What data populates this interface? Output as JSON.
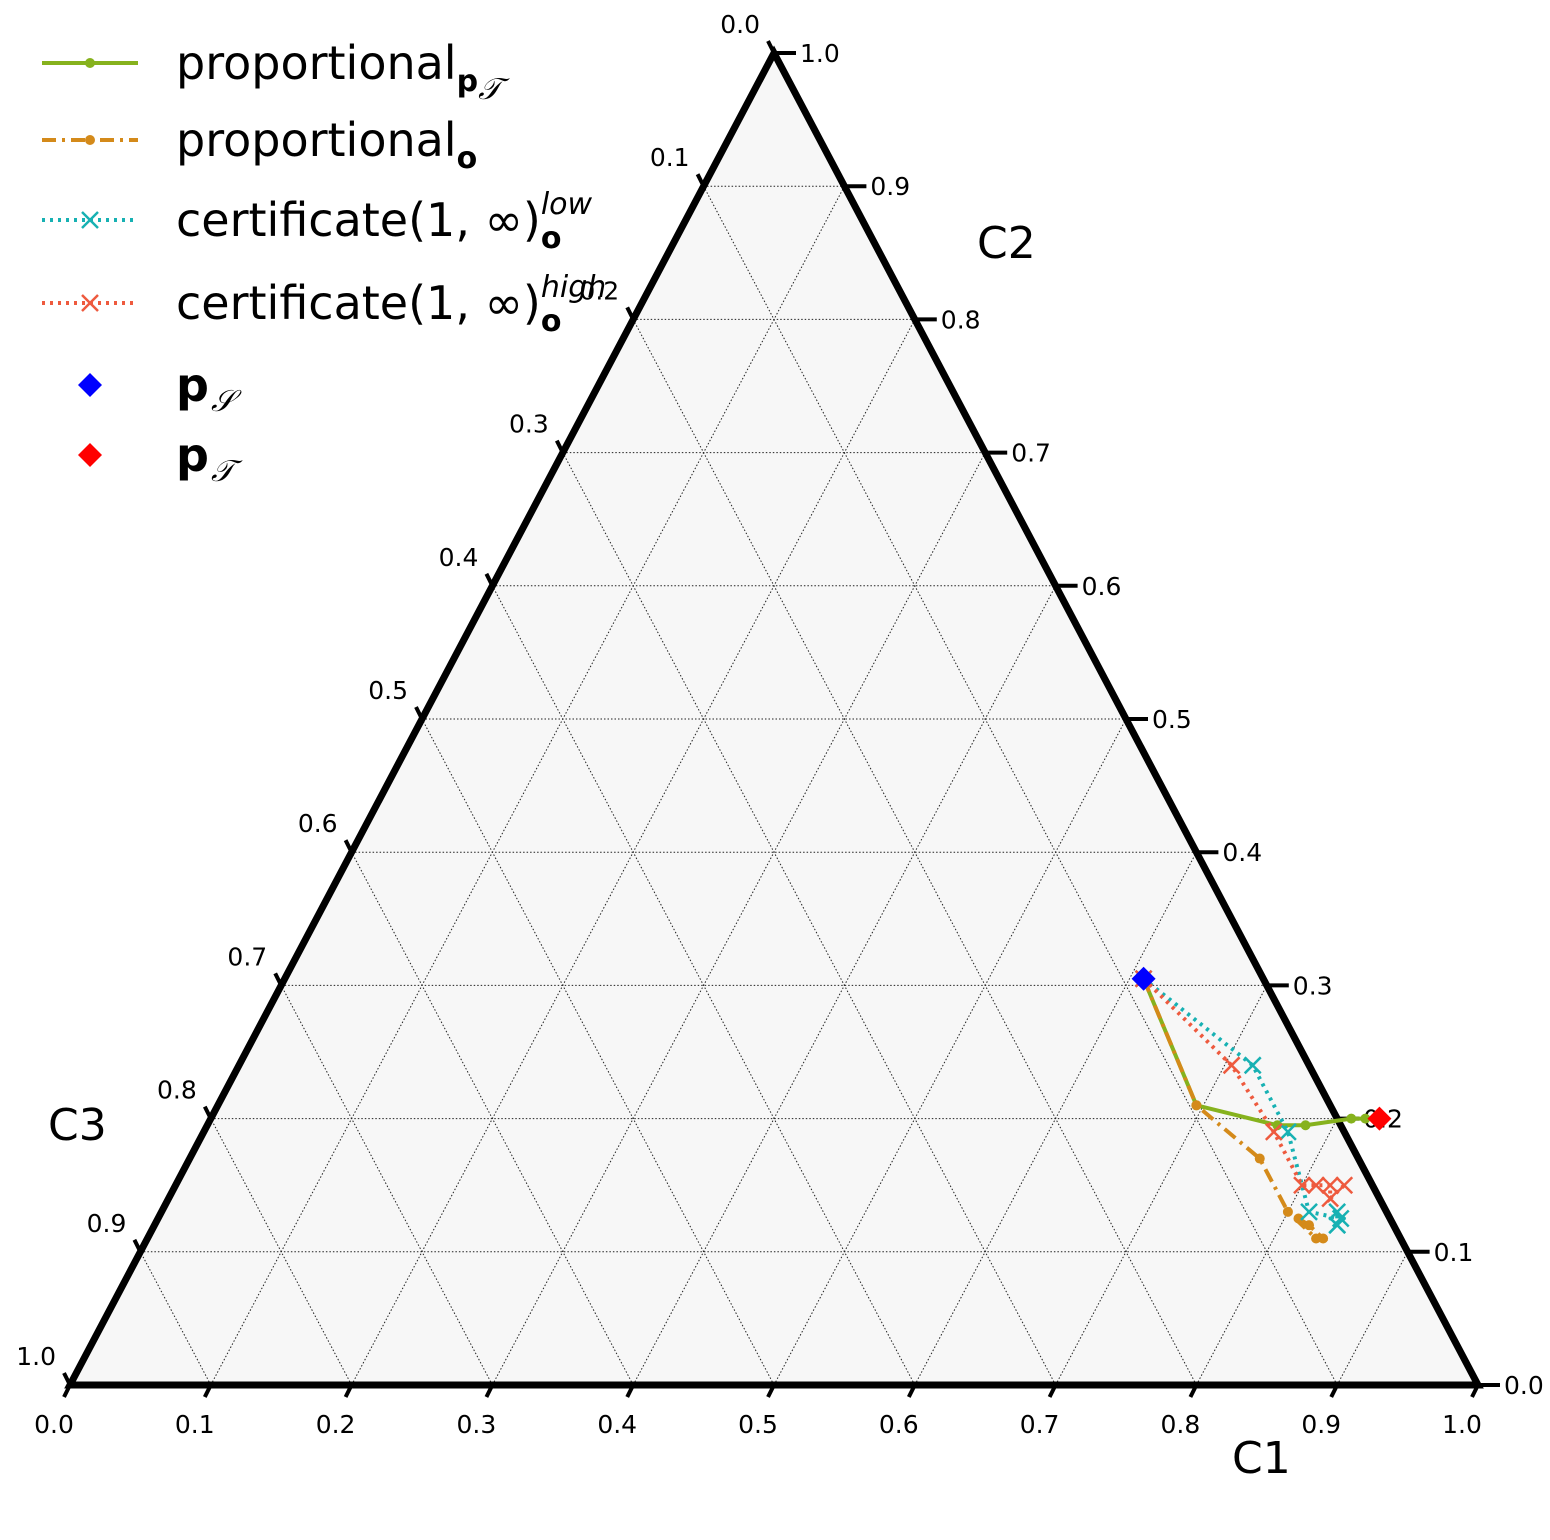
{
  "chart_data": {
    "type": "ternary",
    "axes": {
      "bottom": {
        "label": "C1",
        "ticks": [
          "0.0",
          "0.1",
          "0.2",
          "0.3",
          "0.4",
          "0.5",
          "0.6",
          "0.7",
          "0.8",
          "0.9",
          "1.0"
        ]
      },
      "right": {
        "label": "C2",
        "ticks": [
          "0.0",
          "0.1",
          "0.2",
          "0.3",
          "0.4",
          "0.5",
          "0.6",
          "0.7",
          "0.8",
          "0.9",
          "1.0"
        ]
      },
      "left": {
        "label": "C3",
        "ticks": [
          "0.0",
          "0.1",
          "0.2",
          "0.3",
          "0.4",
          "0.5",
          "0.6",
          "0.7",
          "0.8",
          "0.9",
          "1.0"
        ]
      }
    },
    "grid": true,
    "grid_step": 0.1,
    "legend_position": "top-left",
    "series": [
      {
        "name": "proportional",
        "name_sub": "p",
        "name_sub_script": "𝒯",
        "style": "solid",
        "marker": "dot",
        "color": "#86b21d",
        "points": [
          [
            0.61,
            0.305
          ],
          [
            0.695,
            0.21
          ],
          [
            0.76,
            0.195
          ],
          [
            0.78,
            0.195
          ],
          [
            0.81,
            0.2
          ],
          [
            0.82,
            0.2
          ]
        ]
      },
      {
        "name": "proportional",
        "name_sub": "o",
        "style": "dashdot",
        "marker": "dot",
        "color": "#d48a1a",
        "points": [
          [
            0.61,
            0.305
          ],
          [
            0.695,
            0.21
          ],
          [
            0.76,
            0.17
          ],
          [
            0.8,
            0.13
          ],
          [
            0.83,
            0.11
          ],
          [
            0.835,
            0.11
          ],
          [
            0.82,
            0.12
          ],
          [
            0.81,
            0.125
          ]
        ]
      },
      {
        "name": "certificate(1, ∞)",
        "name_sub": "o",
        "name_sup": "low",
        "style": "dotted",
        "marker": "x",
        "color": "#17b1b3",
        "points": [
          [
            0.61,
            0.305
          ],
          [
            0.72,
            0.24
          ],
          [
            0.77,
            0.19
          ],
          [
            0.815,
            0.13
          ],
          [
            0.84,
            0.125
          ],
          [
            0.84,
            0.12
          ],
          [
            0.835,
            0.13
          ],
          [
            0.84,
            0.12
          ]
        ]
      },
      {
        "name": "certificate(1, ∞)",
        "name_sub": "o",
        "name_sup": "high",
        "style": "dotted",
        "marker": "x",
        "color": "#ee5a3e",
        "points": [
          [
            0.61,
            0.305
          ],
          [
            0.705,
            0.24
          ],
          [
            0.76,
            0.19
          ],
          [
            0.8,
            0.15
          ],
          [
            0.81,
            0.15
          ],
          [
            0.82,
            0.15
          ],
          [
            0.825,
            0.14
          ],
          [
            0.83,
            0.15
          ]
        ]
      }
    ],
    "markers": [
      {
        "name": "p",
        "name_sub": "𝒮",
        "color": "#0000ff",
        "shape": "diamond",
        "point": [
          0.61,
          0.305
        ]
      },
      {
        "name": "p",
        "name_sub": "𝒯",
        "color": "#ff0000",
        "shape": "diamond",
        "point": [
          0.83,
          0.2
        ]
      }
    ]
  }
}
